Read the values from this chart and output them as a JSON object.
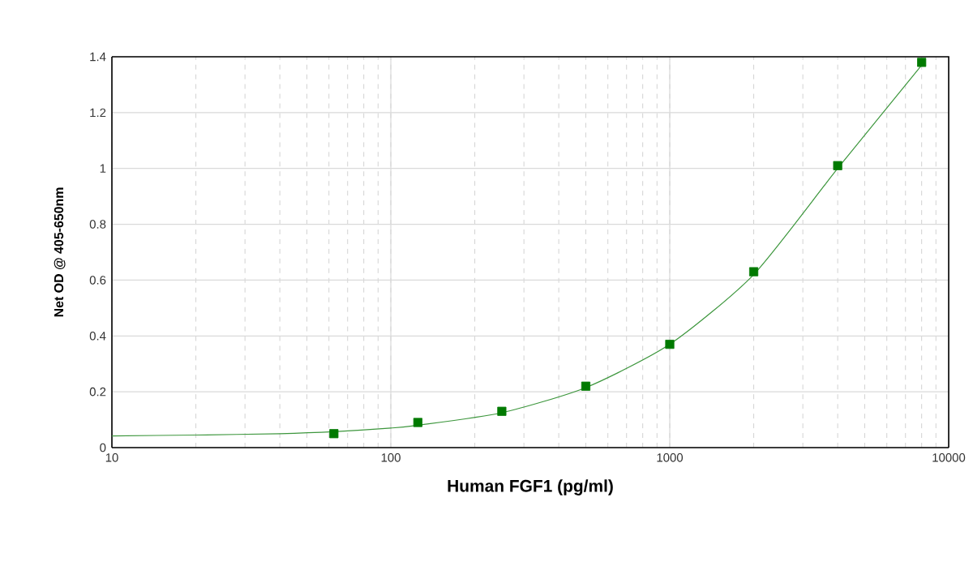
{
  "chart_data": {
    "type": "scatter",
    "xlabel": "Human FGF1  (pg/ml)",
    "ylabel": "Net OD @ 405-650nm",
    "log": "x",
    "grid": true,
    "xlim": [
      10,
      10000
    ],
    "xticks": [
      10,
      100,
      1000,
      10000
    ],
    "ylim": [
      0,
      1.4
    ],
    "yticks": [
      0,
      {
        "value": 0.2,
        "label": "0.2"
      },
      {
        "value": 0.4,
        "label": "0.4"
      },
      {
        "value": 0.6,
        "label": "0.6"
      },
      {
        "value": 0.8,
        "label": "0.8"
      },
      1,
      {
        "value": 1.2,
        "label": "1.2"
      },
      {
        "value": 1.4,
        "label": "1.4"
      }
    ],
    "series": [
      {
        "type": "line",
        "color": "#3c963c",
        "marker": "none",
        "x": [
          10,
          20,
          40,
          62.5,
          100,
          125,
          250,
          500,
          1000,
          2000,
          4000,
          8000
        ],
        "values": [
          0.042,
          0.045,
          0.05,
          0.057,
          0.07,
          0.08,
          0.125,
          0.215,
          0.37,
          0.62,
          1.0,
          1.37
        ]
      },
      {
        "color": "#007a00",
        "marker": "square",
        "x": [
          62.5,
          125,
          250,
          500,
          1000,
          2000,
          4000,
          8000
        ],
        "values": [
          0.05,
          0.09,
          0.13,
          0.22,
          0.37,
          0.63,
          1.01,
          1.38
        ]
      }
    ]
  }
}
